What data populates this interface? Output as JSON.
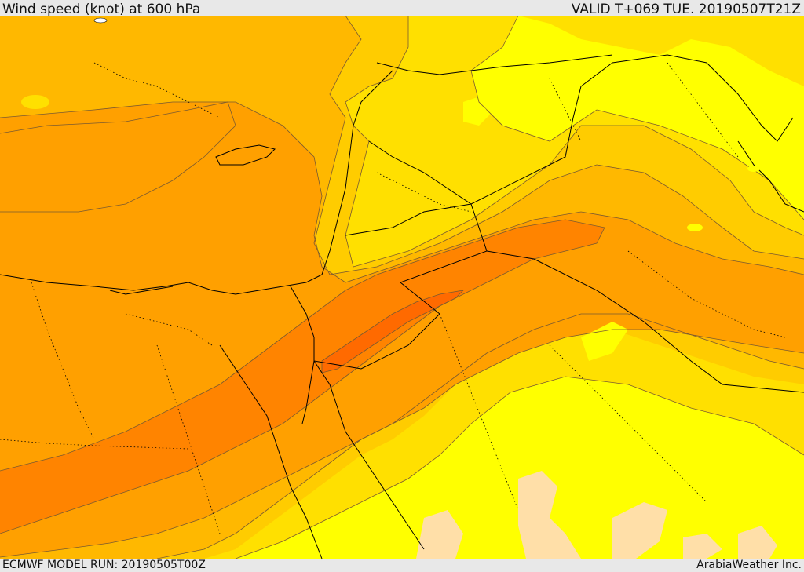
{
  "header": {
    "title": "Wind speed (knot) at 600 hPa",
    "valid": "VALID T+069 TUE. 20190507T21Z"
  },
  "footer": {
    "model_run": "ECMWF MODEL RUN: 20190505T00Z",
    "credit": "ArabiaWeather Inc."
  },
  "map": {
    "field": "wind speed",
    "level": "600 hPa",
    "palette": {
      "very_light": "#ffdfa8",
      "yellow": "#ffff00",
      "gold": "#ffe000",
      "amber_light": "#ffcc00",
      "amber": "#ffb800",
      "orange_light": "#ffa000",
      "orange": "#ff8400",
      "orange_dark": "#ff6a00",
      "contour": "#7a5a30",
      "border": "#000000"
    }
  }
}
